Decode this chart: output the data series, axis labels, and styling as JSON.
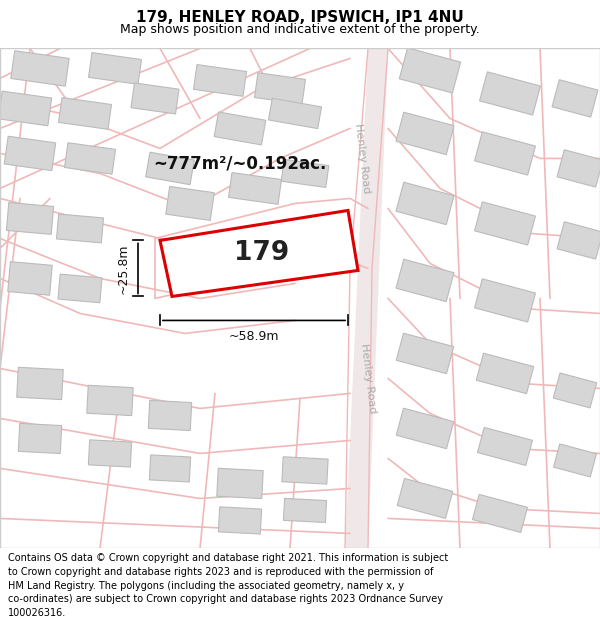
{
  "title_line1": "179, HENLEY ROAD, IPSWICH, IP1 4NU",
  "title_line2": "Map shows position and indicative extent of the property.",
  "footer_text": "Contains OS data © Crown copyright and database right 2021. This information is subject to Crown copyright and database rights 2023 and is reproduced with the permission of HM Land Registry. The polygons (including the associated geometry, namely x, y co-ordinates) are subject to Crown copyright and database rights 2023 Ordnance Survey 100026316.",
  "area_text": "~777m²/~0.192ac.",
  "plot_label": "179",
  "dim_width": "~58.9m",
  "dim_height": "~25.8m",
  "map_bg": "#f7f7f7",
  "road_line_color": "#f0b8b8",
  "road_fill_color": "#f5e0e0",
  "building_fill": "#d6d6d6",
  "building_edge": "#bbbbbb",
  "highlight_fill": "#ffffff",
  "highlight_edge": "#dd0000",
  "road_label_color": "#aaaaaa",
  "henley_road_label": "Henley Road",
  "title_fontsize": 11,
  "subtitle_fontsize": 9,
  "footer_fontsize": 7,
  "map_border_color": "#cccccc"
}
